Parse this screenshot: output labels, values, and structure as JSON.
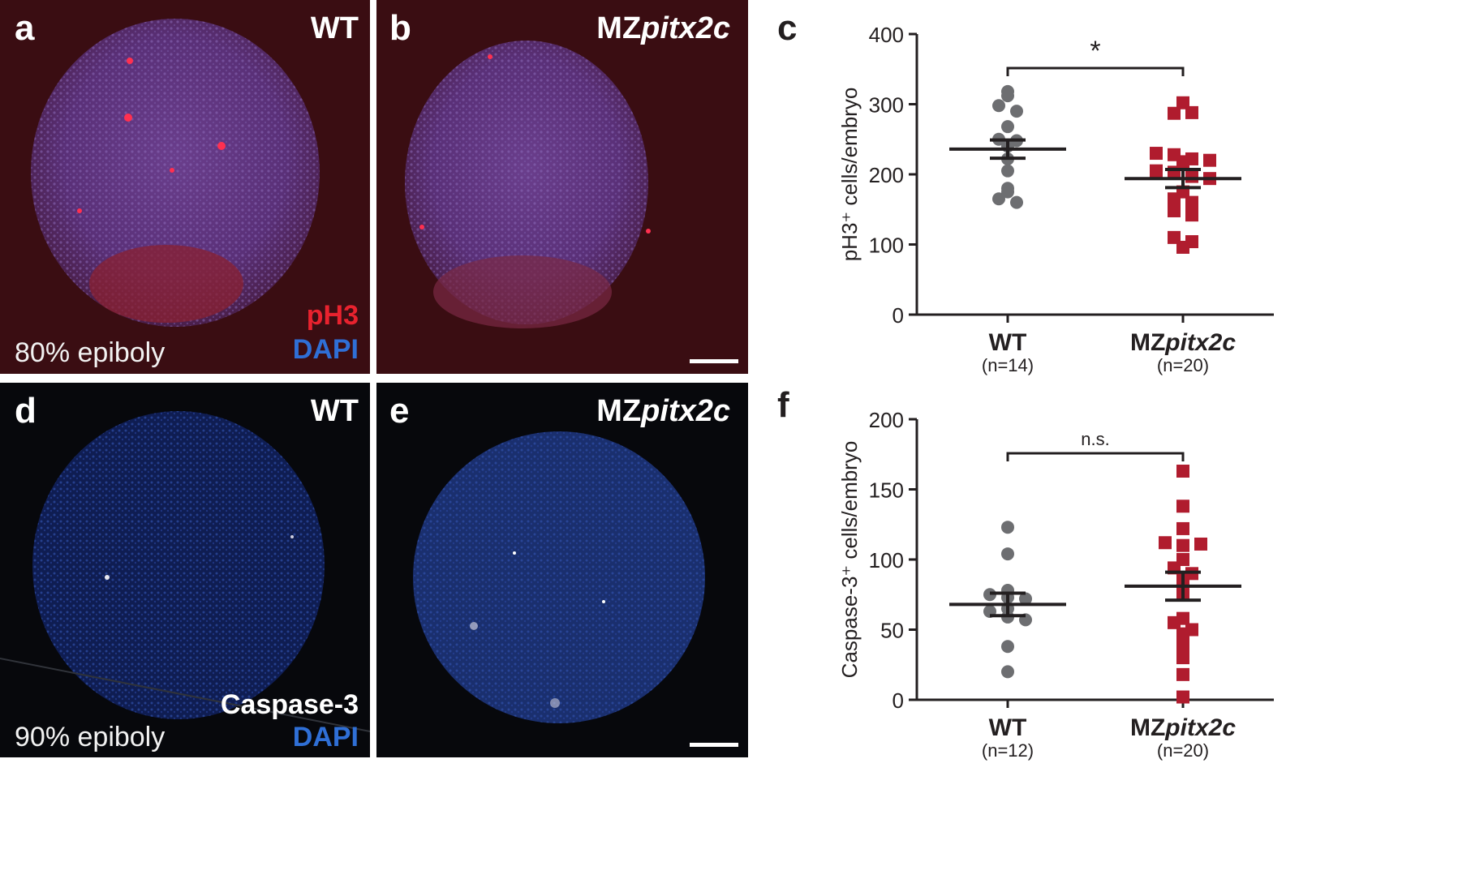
{
  "panels": {
    "a": {
      "letter": "a",
      "genotype": "WT",
      "stage": "80% epiboly",
      "stain1": "pH3",
      "stain2": "DAPI"
    },
    "b": {
      "letter": "b",
      "genotype_prefix": "MZ",
      "genotype_italic": "pitx2c"
    },
    "d": {
      "letter": "d",
      "genotype": "WT",
      "stage": "90% epiboly",
      "stain1": "Caspase-3",
      "stain2": "DAPI"
    },
    "e": {
      "letter": "e",
      "genotype_prefix": "MZ",
      "genotype_italic": "pitx2c"
    }
  },
  "colors": {
    "ph3": "#e8222e",
    "dapi": "#2f6fd6",
    "wt_points": "#6d6e71",
    "mz_points": "#b01c2e"
  },
  "chart_data": [
    {
      "panel": "c",
      "type": "scatter",
      "ylabel": "pH3⁺ cells/embryo",
      "ylim": [
        0,
        400
      ],
      "yticks": [
        0,
        100,
        200,
        300,
        400
      ],
      "categories": [
        "WT",
        "MZpitx2c"
      ],
      "category_prefix": [
        "WT",
        "MZ"
      ],
      "category_italic": [
        "",
        "pitx2c"
      ],
      "n_labels": [
        "(n=14)",
        "(n=20)"
      ],
      "significance": "*",
      "series": [
        {
          "values": [
            318,
            312,
            298,
            290,
            268,
            250,
            248,
            240,
            222,
            205,
            180,
            175,
            165,
            160
          ],
          "mean": 236,
          "sem": 13
        },
        {
          "values": [
            302,
            287,
            288,
            230,
            228,
            222,
            220,
            218,
            205,
            203,
            197,
            194,
            175,
            165,
            160,
            148,
            142,
            110,
            104,
            96
          ],
          "mean": 194,
          "sem": 13
        }
      ]
    },
    {
      "panel": "f",
      "type": "scatter",
      "ylabel": "Caspase-3⁺ cells/embryo",
      "ylim": [
        0,
        200
      ],
      "yticks": [
        0,
        50,
        100,
        150,
        200
      ],
      "categories": [
        "WT",
        "MZpitx2c"
      ],
      "category_prefix": [
        "WT",
        "MZ"
      ],
      "category_italic": [
        "",
        "pitx2c"
      ],
      "n_labels": [
        "(n=12)",
        "(n=20)"
      ],
      "significance": "n.s.",
      "series": [
        {
          "values": [
            123,
            104,
            78,
            75,
            73,
            72,
            65,
            63,
            59,
            57,
            38,
            20
          ],
          "mean": 68,
          "sem": 8
        },
        {
          "values": [
            163,
            138,
            122,
            112,
            110,
            111,
            100,
            94,
            90,
            87,
            80,
            76,
            58,
            55,
            50,
            47,
            38,
            30,
            18,
            2
          ],
          "mean": 81,
          "sem": 10
        }
      ]
    }
  ]
}
